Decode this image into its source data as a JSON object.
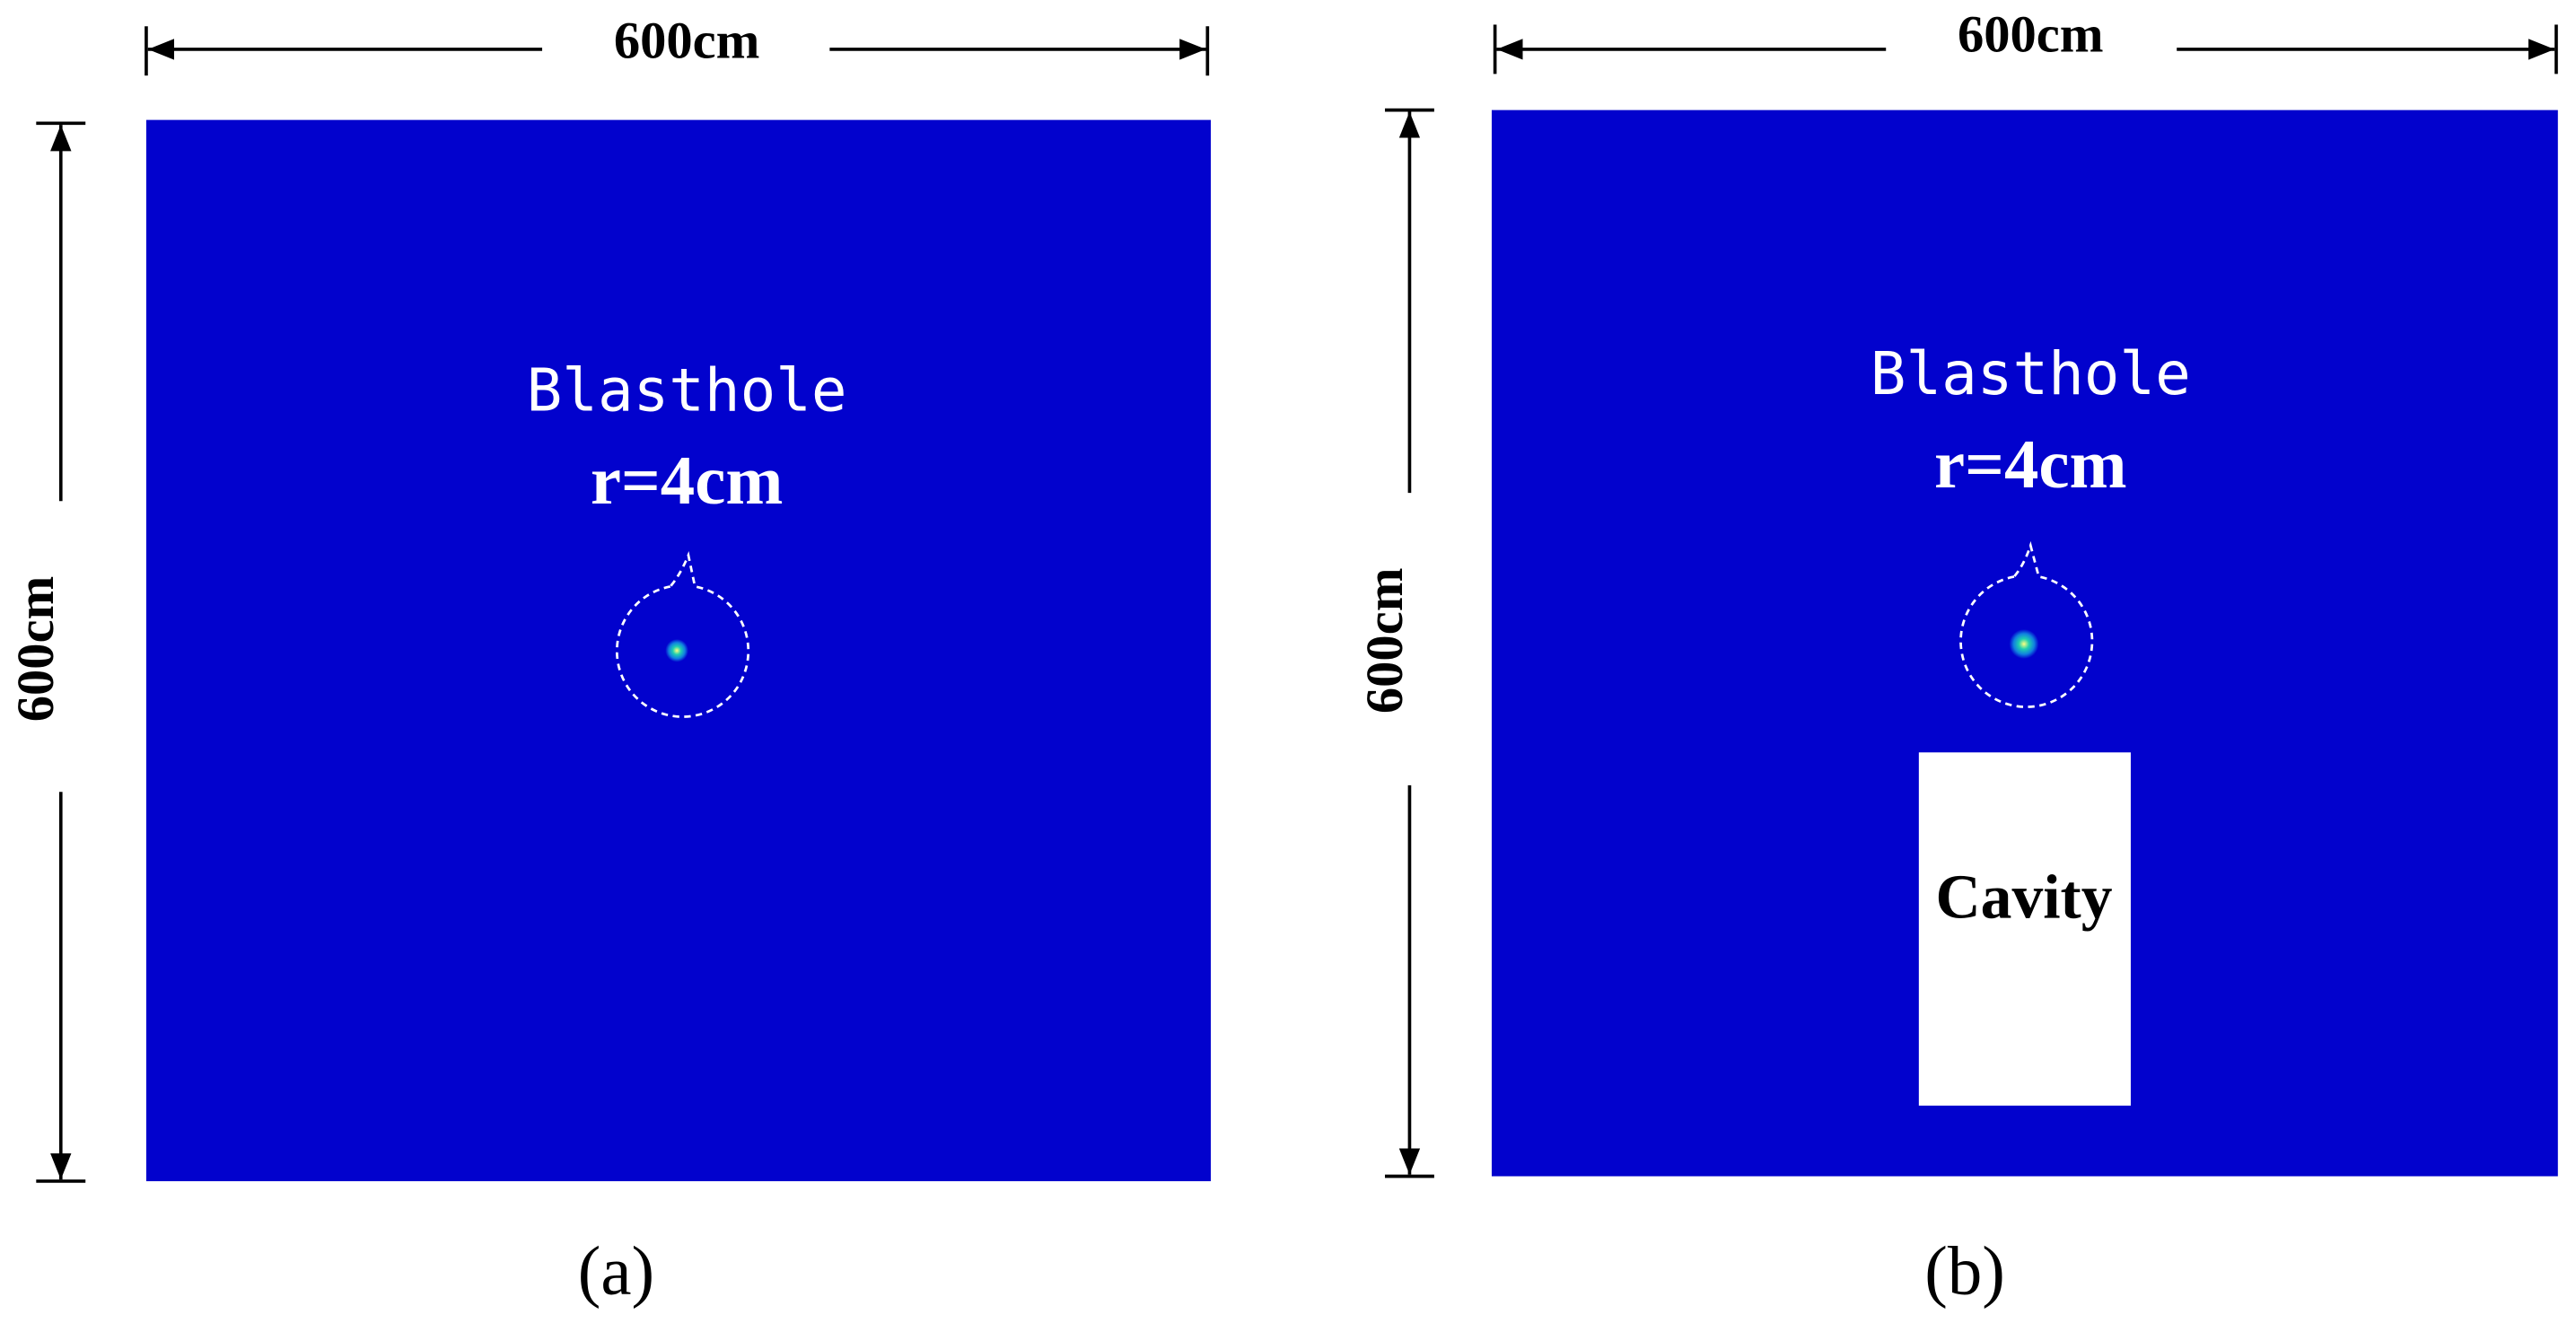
{
  "panels": [
    {
      "width_label": "600cm",
      "height_label": "600cm",
      "blasthole_label": "Blasthole",
      "radius_label": "r=4cm",
      "caption": "(a)"
    },
    {
      "width_label": "600cm",
      "height_label": "600cm",
      "blasthole_label": "Blasthole",
      "radius_label": "r=4cm",
      "cavity_label": "Cavity",
      "caption": "(b)"
    }
  ]
}
